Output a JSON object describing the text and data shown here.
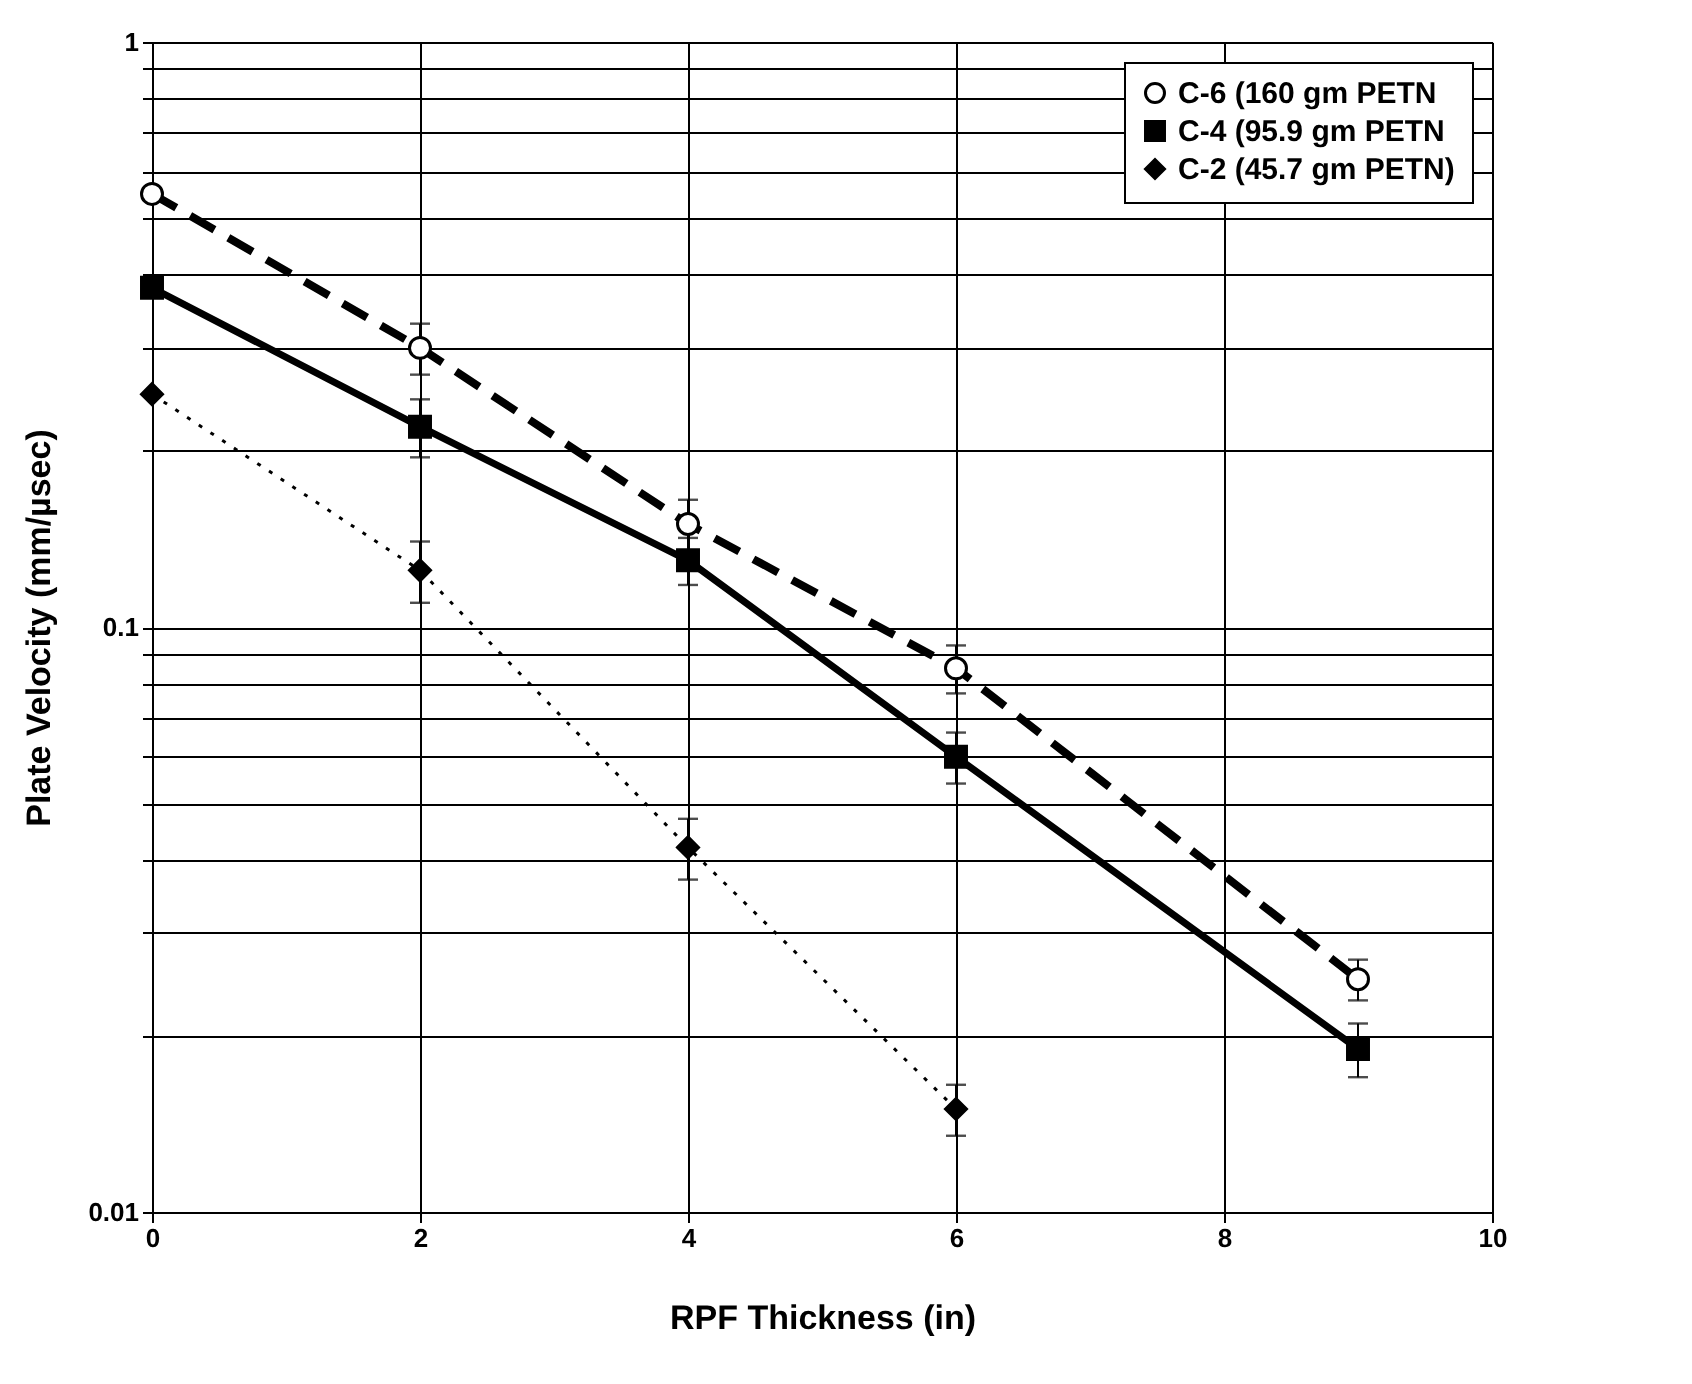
{
  "chart_data": {
    "type": "line",
    "xlabel": "RPF Thickness (in)",
    "ylabel": "Plate Velocity (mm/µsec)",
    "log": "y",
    "grid": true,
    "legend": "top right",
    "xlim": [
      0,
      10
    ],
    "xticks": [
      0,
      2,
      4,
      6,
      8,
      10
    ],
    "ylim": [
      0.01,
      1
    ],
    "yticks": [
      0.01,
      {
        "value": 0.02,
        "label": null
      },
      {
        "value": 0.03,
        "label": null
      },
      {
        "value": 0.04,
        "label": null
      },
      {
        "value": 0.05,
        "label": null
      },
      {
        "value": 0.06,
        "label": null
      },
      {
        "value": 0.07,
        "label": null
      },
      {
        "value": 0.08,
        "label": null
      },
      {
        "value": 0.09,
        "label": null
      },
      0.1,
      {
        "value": 0.2,
        "label": null
      },
      {
        "value": 0.3,
        "label": null
      },
      {
        "value": 0.4,
        "label": null
      },
      {
        "value": 0.5,
        "label": null
      },
      {
        "value": 0.6,
        "label": null
      },
      {
        "value": 0.7,
        "label": null
      },
      {
        "value": 0.8,
        "label": null
      },
      {
        "value": 0.9,
        "label": null
      },
      1
    ],
    "series": [
      {
        "name": "C-6 (160 gm PETN",
        "color": "#000000",
        "marker": "circle",
        "line_style": "dashed",
        "x": [
          0,
          2,
          4,
          6,
          9
        ],
        "values": [
          0.55,
          0.3,
          0.15,
          0.085,
          0.025
        ],
        "errors": [
          null,
          [
            0.27,
            0.33
          ],
          [
            0.135,
            0.165
          ],
          [
            0.077,
            0.093
          ],
          [
            0.023,
            0.027
          ]
        ]
      },
      {
        "name": "C-4 (95.9 gm PETN",
        "color": "#000000",
        "marker": "square",
        "line_style": "solid",
        "x": [
          0,
          2,
          4,
          6,
          9
        ],
        "values": [
          0.38,
          0.22,
          0.13,
          0.06,
          0.019
        ],
        "errors": [
          null,
          [
            0.195,
            0.245
          ],
          [
            0.118,
            0.142
          ],
          [
            0.054,
            0.066
          ],
          [
            0.017,
            0.021
          ]
        ]
      },
      {
        "name": "C-2 (45.7 gm PETN)",
        "color": "#000000",
        "marker": "diamond",
        "line_style": "dotted",
        "x": [
          0,
          2,
          4,
          6
        ],
        "values": [
          0.25,
          0.125,
          0.042,
          0.015
        ],
        "errors": [
          null,
          [
            0.11,
            0.14
          ],
          [
            0.037,
            0.047
          ],
          [
            0.0135,
            0.0165
          ]
        ]
      }
    ]
  }
}
